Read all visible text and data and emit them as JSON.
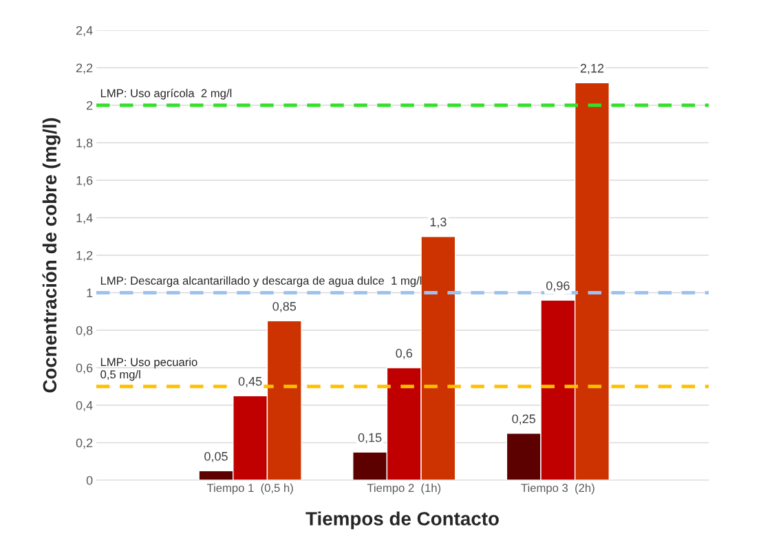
{
  "chart_data": {
    "type": "bar",
    "xlabel": "Tiempos de Contacto",
    "ylabel": "Cocnentración de cobre (mg/l)",
    "categories": [
      "Tiempo 1  (0,5 h)",
      "Tiempo 2  (1h)",
      "Tiempo 3  (2h)"
    ],
    "series": [
      {
        "color": "#5c0000",
        "values": [
          0.05,
          0.15,
          0.25
        ],
        "value_labels": [
          "0,05",
          "0,15",
          "0,25"
        ]
      },
      {
        "color": "#c00000",
        "values": [
          0.45,
          0.6,
          0.96
        ],
        "value_labels": [
          "0,45",
          "0,6",
          "0,96"
        ]
      },
      {
        "color": "#cc3300",
        "values": [
          0.85,
          1.3,
          2.12
        ],
        "value_labels": [
          "0,85",
          "1,3",
          "2,12"
        ]
      }
    ],
    "ylim": [
      0,
      2.4
    ],
    "yticks": [
      0,
      {
        "value": 0.2,
        "label": "0,2"
      },
      {
        "value": 0.4,
        "label": "0,4"
      },
      {
        "value": 0.6,
        "label": "0,6"
      },
      {
        "value": 0.8,
        "label": "0,8"
      },
      1,
      {
        "value": 1.2,
        "label": "1,2"
      },
      {
        "value": 1.4,
        "label": "1,4"
      },
      {
        "value": 1.6,
        "label": "1,6"
      },
      {
        "value": 1.8,
        "label": "1,8"
      },
      2,
      {
        "value": 2.2,
        "label": "2,2"
      },
      {
        "value": 2.4,
        "label": "2,4"
      }
    ],
    "ref_lines": [
      {
        "axis": "y",
        "value": 2,
        "label": "LMP: Uso agrícola  2 mg/l",
        "color": "#33e02a",
        "line_style": "dashed"
      },
      {
        "axis": "y",
        "value": 1,
        "label": "LMP: Descarga alcantarillado y descarga de agua dulce  1 mg/l",
        "color": "#9cc3f0",
        "line_style": "dashed"
      },
      {
        "axis": "y",
        "value": 0.5,
        "label": "LMP: Uso pecuario\n0,5 mg/l",
        "color": "#ffc000",
        "line_style": "dashed"
      }
    ],
    "grid": "y",
    "legend": false
  }
}
